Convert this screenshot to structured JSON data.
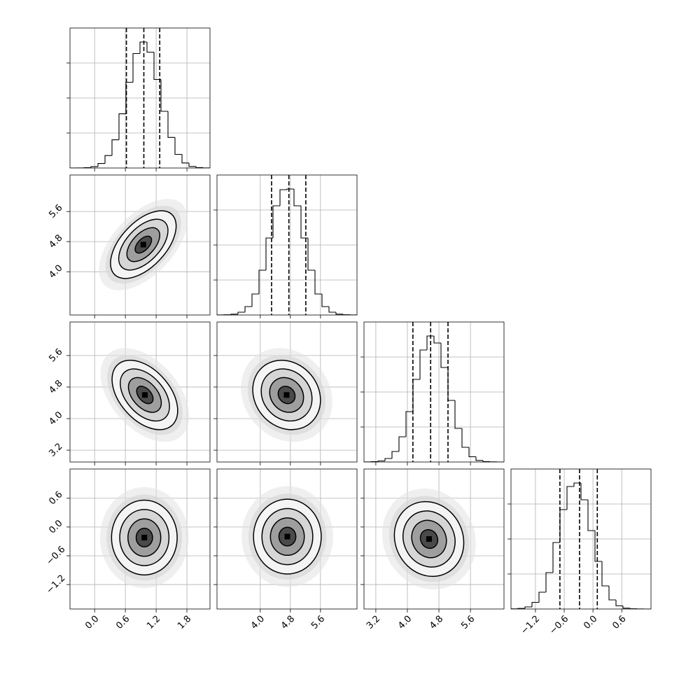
{
  "chart_data": {
    "type": "corner",
    "axes": [
      {
        "lim": [
          -0.48,
          2.25
        ],
        "ticks": [
          {
            "value": 0,
            "label": "0.0"
          },
          0.6,
          1.2,
          1.8
        ]
      },
      {
        "lim": [
          2.85,
          6.57
        ],
        "ticks": [
          {
            "value": 4,
            "label": "4.0"
          },
          4.8,
          5.6
        ]
      },
      {
        "lim": [
          2.9,
          6.45
        ],
        "ticks": [
          3.2,
          {
            "value": 4,
            "label": "4.0"
          },
          4.8,
          5.6
        ]
      },
      {
        "lim": [
          -1.71,
          1.21
        ],
        "ticks": [
          {
            "value": -1.2,
            "label": "−1.2"
          },
          {
            "value": -0.6,
            "label": "−0.6"
          },
          {
            "value": 0,
            "label": "0.0"
          },
          0.6
        ]
      }
    ],
    "histograms": [
      {
        "bins": [
          -0.48,
          -0.3435,
          -0.207,
          -0.0705,
          0.066,
          0.2025,
          0.339,
          0.4755,
          0.612,
          0.7485,
          0.885,
          1.0215,
          1.158,
          1.2945,
          1.431,
          1.5675,
          1.704,
          1.8405,
          1.977,
          2.1135,
          2.25
        ],
        "counts": [
          0,
          1,
          5,
          19,
          64,
          178,
          403,
          774,
          1225,
          1635,
          1800,
          1655,
          1265,
          810,
          437,
          195,
          72,
          22,
          6,
          1
        ],
        "quantiles": [
          0.62,
          0.96,
          1.27
        ],
        "ylim": [
          0,
          2000
        ],
        "yticks": [
          500,
          1000,
          1500
        ]
      },
      {
        "bins": [
          2.85,
          3.036,
          3.222,
          3.408,
          3.594,
          3.78,
          3.966,
          4.152,
          4.338,
          4.524,
          4.71,
          4.896,
          5.082,
          5.268,
          5.454,
          5.64,
          5.826,
          6.012,
          6.198,
          6.384,
          6.57
        ],
        "counts": [
          1,
          3,
          12,
          40,
          120,
          300,
          640,
          1100,
          1560,
          1790,
          1800,
          1560,
          1100,
          640,
          300,
          120,
          40,
          12,
          3,
          1
        ],
        "quantiles": [
          4.3,
          4.76,
          5.21
        ],
        "ylim": [
          0,
          2000
        ],
        "yticks": [
          500,
          1000,
          1500
        ]
      },
      {
        "bins": [
          2.9,
          3.0775,
          3.255,
          3.4325,
          3.61,
          3.7875,
          3.965,
          4.1425,
          4.32,
          4.4975,
          4.675,
          4.8525,
          5.03,
          5.2075,
          5.385,
          5.5625,
          5.74,
          5.9175,
          6.095,
          6.2725,
          6.45
        ],
        "counts": [
          1,
          4,
          15,
          50,
          150,
          360,
          720,
          1180,
          1600,
          1800,
          1700,
          1350,
          880,
          480,
          210,
          75,
          22,
          6,
          2,
          0
        ],
        "quantiles": [
          4.14,
          4.59,
          5.03
        ],
        "ylim": [
          0,
          2000
        ],
        "yticks": [
          500,
          1000,
          1500
        ]
      },
      {
        "bins": [
          -1.71,
          -1.564,
          -1.418,
          -1.272,
          -1.126,
          -0.98,
          -0.834,
          -0.688,
          -0.542,
          -0.396,
          -0.25,
          -0.104,
          0.042,
          0.188,
          0.334,
          0.48,
          0.626,
          0.772,
          0.918,
          1.064,
          1.21
        ],
        "counts": [
          2,
          8,
          30,
          95,
          240,
          520,
          950,
          1420,
          1750,
          1800,
          1560,
          1120,
          680,
          330,
          130,
          45,
          12,
          3,
          1,
          0
        ],
        "quantiles": [
          -0.69,
          -0.28,
          0.09
        ],
        "ylim": [
          0,
          2000
        ],
        "yticks": [
          500,
          1000,
          1500
        ]
      }
    ],
    "levels": [
      0.5,
      1,
      1.5,
      2
    ],
    "densities": [
      {
        "center": [
          0.95,
          4.72
        ],
        "sigma": [
          0.32,
          0.45
        ],
        "rho": 0.55
      },
      {
        "center": [
          0.98,
          4.6
        ],
        "sigma": [
          0.32,
          0.44
        ],
        "rho": -0.45
      },
      {
        "center": [
          4.7,
          4.6
        ],
        "sigma": [
          0.45,
          0.44
        ],
        "rho": -0.15
      },
      {
        "center": [
          0.97,
          -0.22
        ],
        "sigma": [
          0.32,
          0.39
        ],
        "rho": 0
      },
      {
        "center": [
          4.72,
          -0.2
        ],
        "sigma": [
          0.45,
          0.39
        ],
        "rho": 0
      },
      {
        "center": [
          4.55,
          -0.25
        ],
        "sigma": [
          0.44,
          0.39
        ],
        "rho": -0.1
      }
    ]
  }
}
